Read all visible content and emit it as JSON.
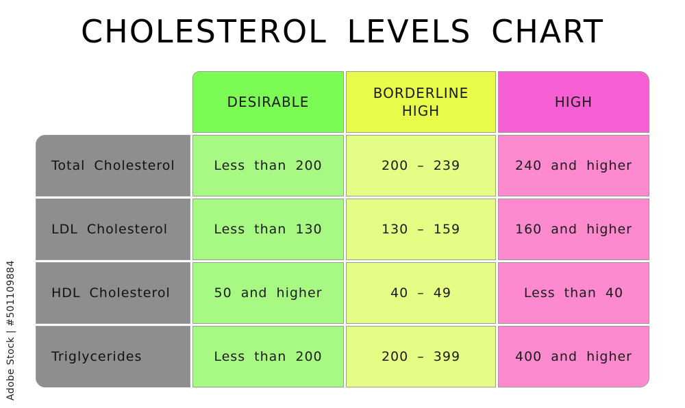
{
  "title": "CHOLESTEROL LEVELS CHART",
  "columns": {
    "desirable": "DESIRABLE",
    "borderline": "BORDERLINE\nHIGH",
    "high": "HIGH"
  },
  "rows": [
    {
      "label": "Total Cholesterol",
      "desirable": "Less than 200",
      "borderline": "200 – 239",
      "high": "240 and higher"
    },
    {
      "label": "LDL Cholesterol",
      "desirable": "Less than 130",
      "borderline": "130 – 159",
      "high": "160 and higher"
    },
    {
      "label": "HDL Cholesterol",
      "desirable": "50 and higher",
      "borderline": "40 – 49",
      "high": "Less than 40"
    },
    {
      "label": "Triglycerides",
      "desirable": "Less than 200",
      "borderline": "200 – 399",
      "high": "400 and higher"
    }
  ],
  "watermark_id": "Adobe Stock | #501109884",
  "colors": {
    "desirable_header": "#7dfb55",
    "borderline_header": "#e8fb4a",
    "high_header": "#f75fd5",
    "desirable_cell": "#a8f984",
    "borderline_cell": "#e6fd85",
    "high_cell": "#fd89cf",
    "row_label": "#8e8e8e"
  }
}
